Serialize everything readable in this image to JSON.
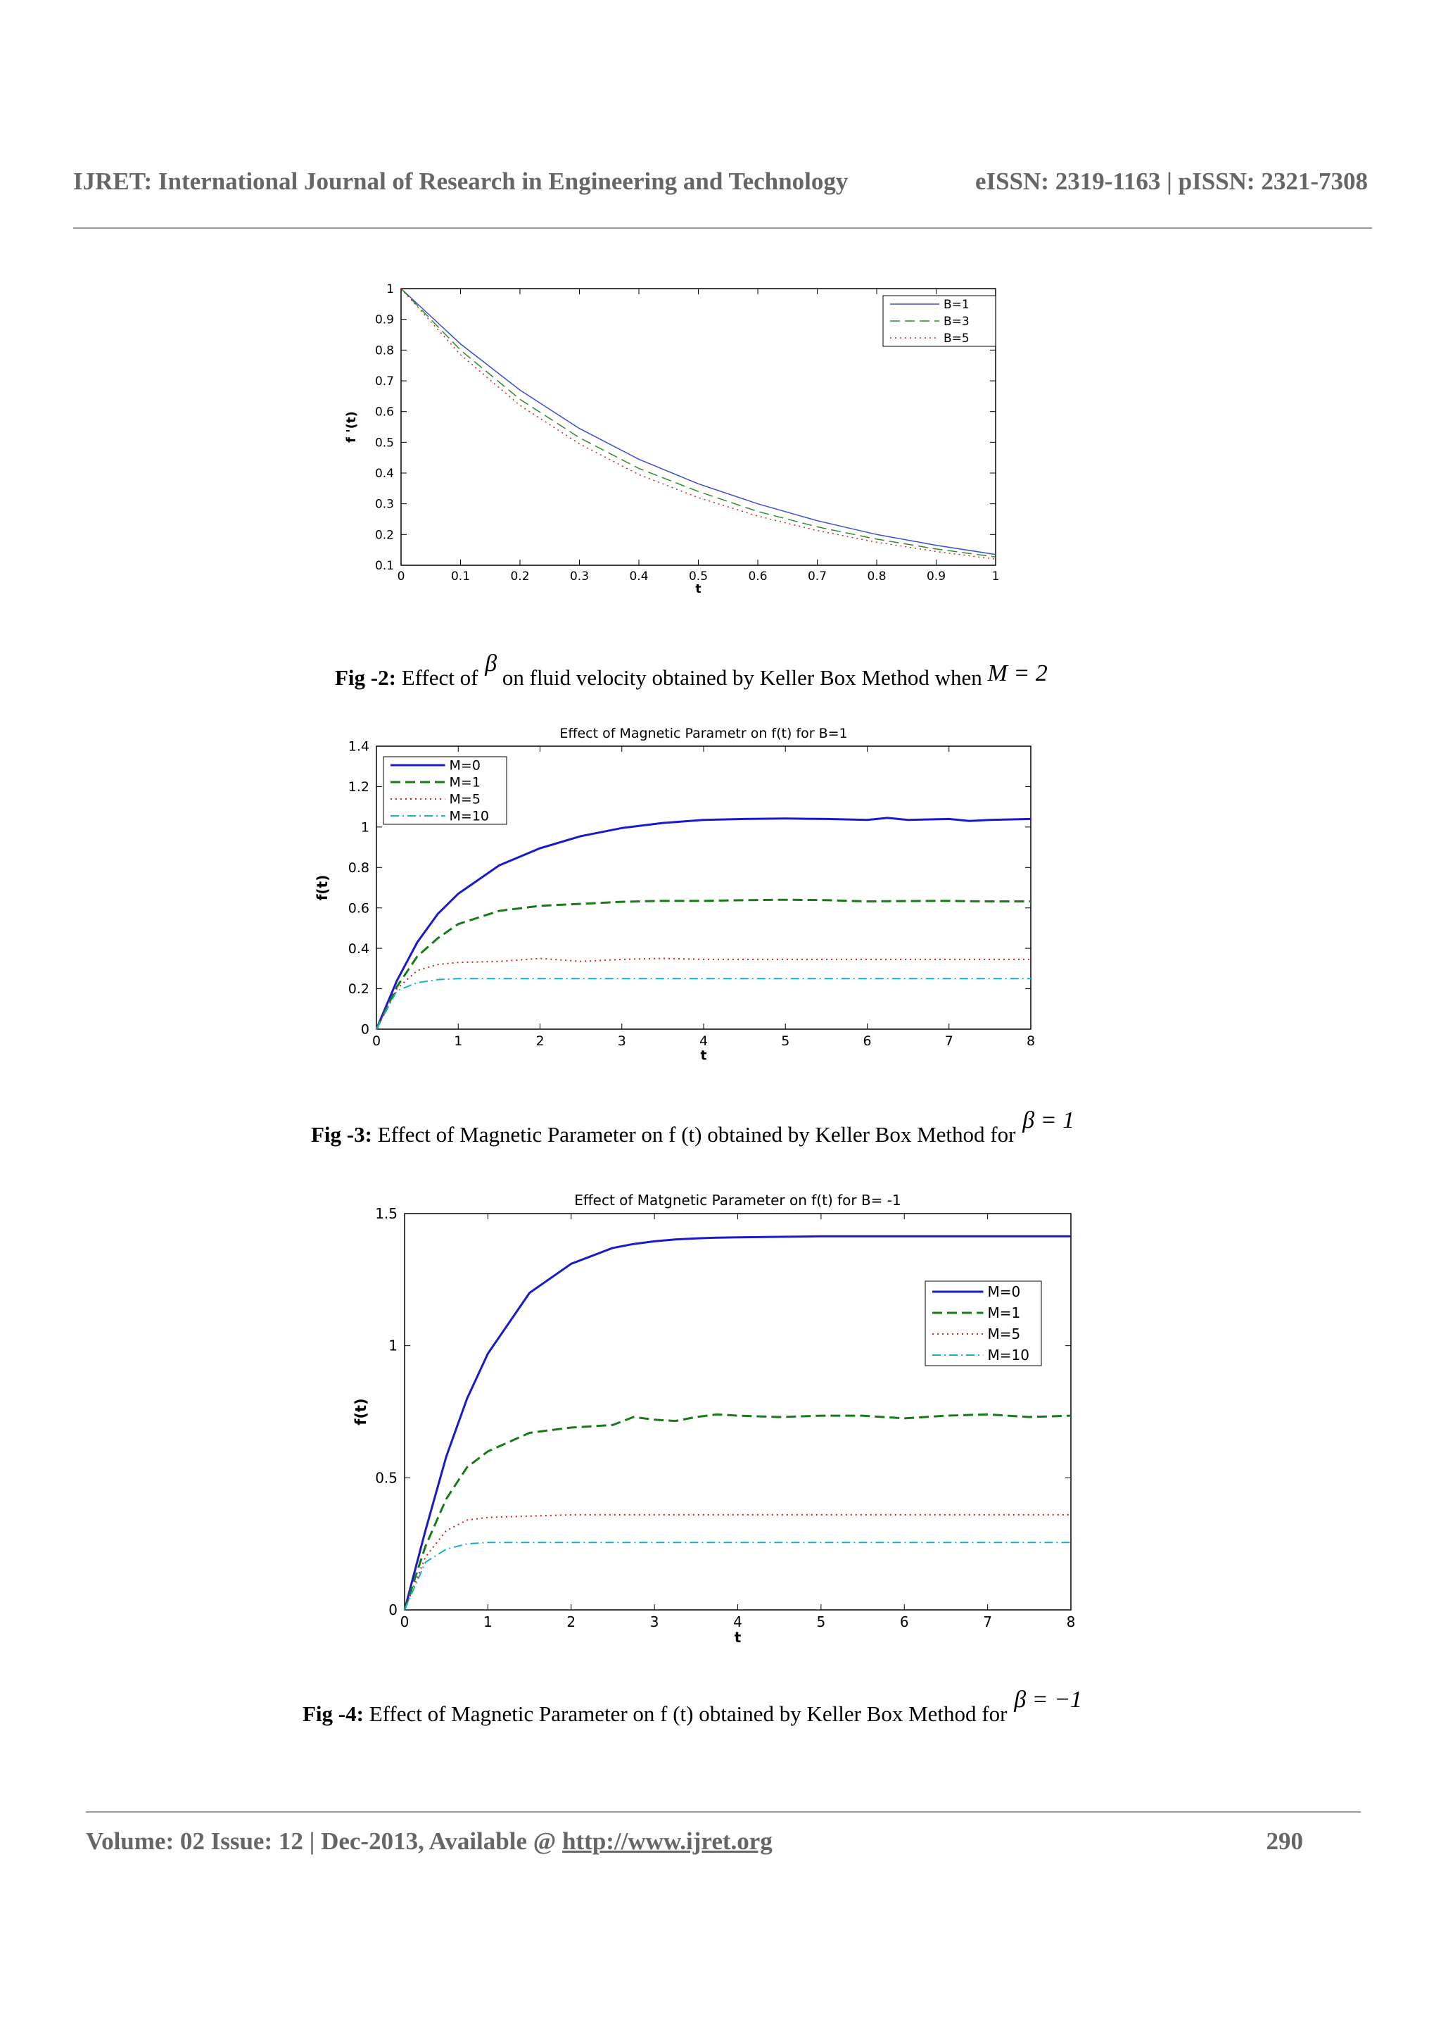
{
  "header": {
    "journal": "IJRET: International Journal of Research in Engineering and Technology",
    "issn": "eISSN: 2319-1163 | pISSN: 2321-7308"
  },
  "footer": {
    "volume": "Volume: 02 Issue: 12 | Dec-2013, Available @ ",
    "url": "http://www.ijret.org",
    "page": "290"
  },
  "captions": {
    "fig2": {
      "label": "Fig -2:",
      "pre": " Effect of ",
      "sym": "β",
      "mid": " on fluid velocity obtained by Keller Box Method when ",
      "cond": "M = 2"
    },
    "fig3": {
      "label": "Fig -3:",
      "pre": "  Effect of Magnetic Parameter on f (t) obtained by Keller Box Method for ",
      "cond": "β = 1"
    },
    "fig4": {
      "label": "Fig -4:",
      "pre": "  Effect of Magnetic Parameter on f (t) obtained by Keller Box Method for ",
      "cond": "β = −1"
    }
  },
  "chart_data": [
    {
      "type": "line",
      "title": "",
      "xlabel": "t",
      "ylabel": "f '(t)",
      "xlim": [
        0,
        1
      ],
      "ylim": [
        0.1,
        1
      ],
      "xticks": [
        "0",
        "0.1",
        "0.2",
        "0.3",
        "0.4",
        "0.5",
        "0.6",
        "0.7",
        "0.8",
        "0.9",
        "1"
      ],
      "yticks": [
        "0.1",
        "0.2",
        "0.3",
        "0.4",
        "0.5",
        "0.6",
        "0.7",
        "0.8",
        "0.9",
        "1"
      ],
      "legend_position": "top-right",
      "x": [
        0,
        0.1,
        0.2,
        0.3,
        0.4,
        0.5,
        0.6,
        0.7,
        0.8,
        0.9,
        1.0
      ],
      "series": [
        {
          "name": "B=1",
          "color": "#3a4fd0",
          "style": "solid",
          "values": [
            1.0,
            0.82,
            0.67,
            0.545,
            0.445,
            0.365,
            0.3,
            0.245,
            0.2,
            0.165,
            0.135
          ]
        },
        {
          "name": "B=3",
          "color": "#2e8b2e",
          "style": "dashed",
          "values": [
            1.0,
            0.8,
            0.64,
            0.515,
            0.415,
            0.34,
            0.275,
            0.225,
            0.185,
            0.153,
            0.127
          ]
        },
        {
          "name": "B=5",
          "color": "#d02020",
          "style": "dotted",
          "values": [
            1.0,
            0.785,
            0.62,
            0.495,
            0.395,
            0.32,
            0.26,
            0.213,
            0.175,
            0.145,
            0.12
          ]
        }
      ]
    },
    {
      "type": "line",
      "title": "Effect of Magnetic Parametr on f(t) for B=1",
      "xlabel": "t",
      "ylabel": "f(t)",
      "xlim": [
        0,
        8
      ],
      "ylim": [
        0,
        1.4
      ],
      "xticks": [
        "0",
        "1",
        "2",
        "3",
        "4",
        "5",
        "6",
        "7",
        "8"
      ],
      "yticks": [
        "0",
        "0.2",
        "0.4",
        "0.6",
        "0.8",
        "1",
        "1.2",
        "1.4"
      ],
      "legend_position": "top-left",
      "x": [
        0,
        0.25,
        0.5,
        0.75,
        1,
        1.5,
        2,
        2.5,
        3,
        3.5,
        4,
        4.5,
        5,
        5.5,
        6,
        6.25,
        6.5,
        7,
        7.25,
        7.5,
        8
      ],
      "series": [
        {
          "name": "M=0",
          "color": "#1a1acc",
          "style": "solid",
          "width": 3,
          "values": [
            0,
            0.24,
            0.43,
            0.57,
            0.67,
            0.81,
            0.895,
            0.955,
            0.995,
            1.02,
            1.035,
            1.04,
            1.042,
            1.04,
            1.035,
            1.045,
            1.035,
            1.04,
            1.03,
            1.035,
            1.04
          ]
        },
        {
          "name": "M=1",
          "color": "#1a7a1a",
          "style": "dashed",
          "width": 3,
          "values": [
            0,
            0.21,
            0.36,
            0.45,
            0.52,
            0.585,
            0.61,
            0.62,
            0.63,
            0.635,
            0.635,
            0.638,
            0.64,
            0.638,
            0.632,
            0.633,
            0.634,
            0.635,
            0.633,
            0.632,
            0.632
          ]
        },
        {
          "name": "M=5",
          "color": "#d02020",
          "style": "dotted",
          "width": 2,
          "values": [
            0,
            0.2,
            0.29,
            0.32,
            0.33,
            0.335,
            0.35,
            0.335,
            0.345,
            0.35,
            0.345,
            0.345,
            0.345,
            0.345,
            0.345,
            0.345,
            0.345,
            0.345,
            0.345,
            0.345,
            0.345
          ]
        },
        {
          "name": "M=10",
          "color": "#1ab0c0",
          "style": "dashdot",
          "width": 2,
          "values": [
            0,
            0.19,
            0.23,
            0.245,
            0.25,
            0.25,
            0.25,
            0.25,
            0.25,
            0.25,
            0.25,
            0.25,
            0.25,
            0.25,
            0.25,
            0.25,
            0.25,
            0.25,
            0.25,
            0.25,
            0.25
          ]
        }
      ]
    },
    {
      "type": "line",
      "title": "Effect of Matgnetic Parameter on f(t) for B= -1",
      "xlabel": "t",
      "ylabel": "f(t)",
      "xlim": [
        0,
        8
      ],
      "ylim": [
        0,
        1.5
      ],
      "xticks": [
        "0",
        "1",
        "2",
        "3",
        "4",
        "5",
        "6",
        "7",
        "8"
      ],
      "yticks": [
        "0",
        "0.5",
        "1",
        "1.5"
      ],
      "legend_position": "right",
      "x": [
        0,
        0.25,
        0.5,
        0.75,
        1,
        1.5,
        2,
        2.5,
        2.75,
        3,
        3.25,
        3.5,
        3.75,
        4,
        4.5,
        5,
        5.5,
        6,
        6.5,
        7,
        7.5,
        8
      ],
      "series": [
        {
          "name": "M=0",
          "color": "#1a1acc",
          "style": "solid",
          "width": 3,
          "values": [
            0,
            0.3,
            0.58,
            0.8,
            0.97,
            1.2,
            1.31,
            1.37,
            1.385,
            1.395,
            1.402,
            1.406,
            1.409,
            1.41,
            1.412,
            1.414,
            1.414,
            1.414,
            1.414,
            1.414,
            1.414,
            1.414
          ]
        },
        {
          "name": "M=1",
          "color": "#1a7a1a",
          "style": "dashed",
          "width": 3,
          "values": [
            0,
            0.24,
            0.42,
            0.54,
            0.6,
            0.67,
            0.69,
            0.7,
            0.73,
            0.72,
            0.715,
            0.73,
            0.74,
            0.735,
            0.73,
            0.735,
            0.735,
            0.725,
            0.735,
            0.74,
            0.73,
            0.735
          ]
        },
        {
          "name": "M=5",
          "color": "#d02020",
          "style": "dotted",
          "width": 2,
          "values": [
            0,
            0.2,
            0.3,
            0.34,
            0.35,
            0.355,
            0.36,
            0.36,
            0.36,
            0.36,
            0.36,
            0.36,
            0.36,
            0.36,
            0.36,
            0.36,
            0.36,
            0.36,
            0.36,
            0.36,
            0.36,
            0.36
          ]
        },
        {
          "name": "M=10",
          "color": "#1ab0c0",
          "style": "dashdot",
          "width": 2,
          "values": [
            0,
            0.18,
            0.23,
            0.25,
            0.255,
            0.255,
            0.255,
            0.255,
            0.255,
            0.255,
            0.255,
            0.255,
            0.255,
            0.255,
            0.255,
            0.255,
            0.255,
            0.255,
            0.255,
            0.255,
            0.255,
            0.255
          ]
        }
      ]
    }
  ]
}
